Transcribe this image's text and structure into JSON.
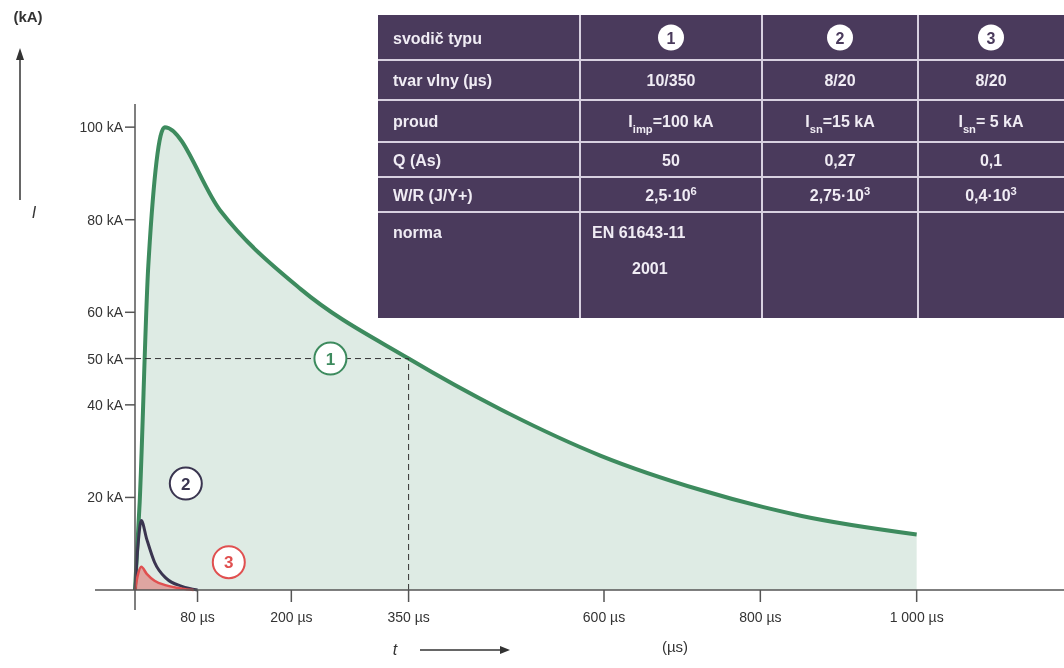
{
  "chart_data": [
    {
      "type": "area",
      "xlabel": "t",
      "ylabel": "I",
      "annotations": [
        "(kA)",
        "(µs)"
      ],
      "xlim": [
        0,
        1200
      ],
      "ylim": [
        0,
        105
      ],
      "xticks": [
        {
          "value": 80,
          "label": "80 µs"
        },
        {
          "value": 200,
          "label": "200 µs"
        },
        {
          "value": 350,
          "label": "350 µs"
        },
        {
          "value": 600,
          "label": "600 µs"
        },
        {
          "value": 800,
          "label": "800 µs"
        },
        {
          "value": 1000,
          "label": "1 000 µs"
        }
      ],
      "yticks": [
        {
          "value": 20,
          "label": "20 kA"
        },
        {
          "value": 40,
          "label": "40 kA"
        },
        {
          "value": 50,
          "label": "50 kA"
        },
        {
          "value": 60,
          "label": "60 kA"
        },
        {
          "value": 80,
          "label": "80 kA"
        },
        {
          "value": 100,
          "label": "100 kA"
        }
      ],
      "ref_lines": [
        {
          "axis": "y",
          "value": 50,
          "line_style": "dashed",
          "color": "#333333"
        },
        {
          "axis": "x",
          "value": 350,
          "line_style": "dashed",
          "color": "#333333"
        }
      ],
      "series": [
        {
          "name": "1",
          "type": "area",
          "color": "#3d8b5e",
          "x": [
            0,
            6,
            17,
            38,
            109,
            212,
            350,
            468,
            596,
            724,
            853,
            1000
          ],
          "values": [
            0,
            19,
            70,
            100,
            82,
            65,
            50,
            39,
            29,
            21.6,
            16,
            12
          ]
        },
        {
          "name": "2",
          "type": "line",
          "color": "#3a3550",
          "x": [
            0,
            4,
            8,
            15,
            25,
            40,
            60,
            80
          ],
          "values": [
            0,
            10,
            15,
            11,
            6,
            2.5,
            0.8,
            0
          ]
        },
        {
          "name": "3",
          "type": "area",
          "color": "#e05050",
          "x": [
            0,
            4,
            8,
            15,
            25,
            40,
            60,
            75
          ],
          "values": [
            0,
            3.5,
            5,
            3.5,
            2,
            1,
            0.3,
            0
          ]
        }
      ]
    },
    {
      "type": "other",
      "categories": [
        "svodič typu",
        "1",
        "2",
        "3"
      ],
      "y_categories": [
        "tvar vlny (µs)",
        "proud",
        "Q (As)",
        "W/R (J/Y+)",
        "norma"
      ],
      "cell_labels": [
        [
          "10/350",
          "8/20",
          "8/20"
        ],
        [
          "I$_{imp}$=100 kA",
          "I$_{sn}$=15 kA",
          "I$_{sn}$= 5 kA"
        ],
        [
          "50",
          "0,27",
          "0,1"
        ],
        [
          "2,5·10$^{6}$",
          "2,75·10$^{3}$",
          "0,4·10$^{3}$"
        ],
        [
          "EN 61643-11\n2001",
          null,
          null
        ]
      ]
    }
  ]
}
